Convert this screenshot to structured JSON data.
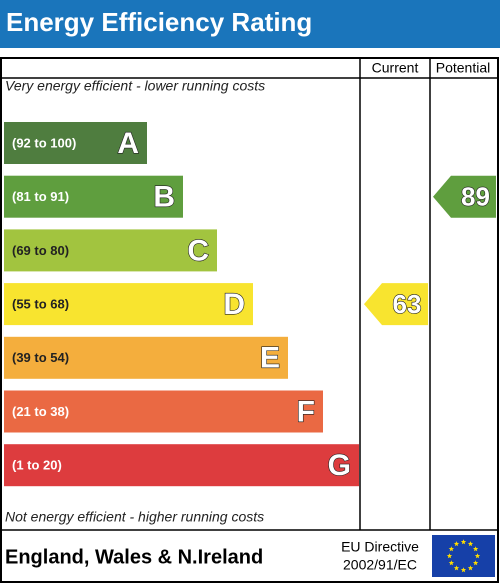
{
  "title": "Energy Efficiency Rating",
  "columns": {
    "current": "Current",
    "potential": "Potential"
  },
  "top_note": "Very energy efficient - lower running costs",
  "bottom_note": "Not energy efficient - higher running costs",
  "bands": [
    {
      "range": "(92 to 100)",
      "letter": "A",
      "color": "#4f7d3f"
    },
    {
      "range": "(81 to 91)",
      "letter": "B",
      "color": "#5f9e3e"
    },
    {
      "range": "(69 to 80)",
      "letter": "C",
      "color": "#a2c43f"
    },
    {
      "range": "(55 to 68)",
      "letter": "D",
      "color": "#f8e42f"
    },
    {
      "range": "(39 to 54)",
      "letter": "E",
      "color": "#f4ae3d"
    },
    {
      "range": "(21 to 38)",
      "letter": "F",
      "color": "#ea6943"
    },
    {
      "range": "(1 to 20)",
      "letter": "G",
      "color": "#dd3c3e"
    }
  ],
  "current": {
    "value": 63
  },
  "potential": {
    "value": 89
  },
  "footer": {
    "region": "England, Wales & N.Ireland",
    "directive": [
      "EU Directive",
      "2002/91/EC"
    ]
  }
}
